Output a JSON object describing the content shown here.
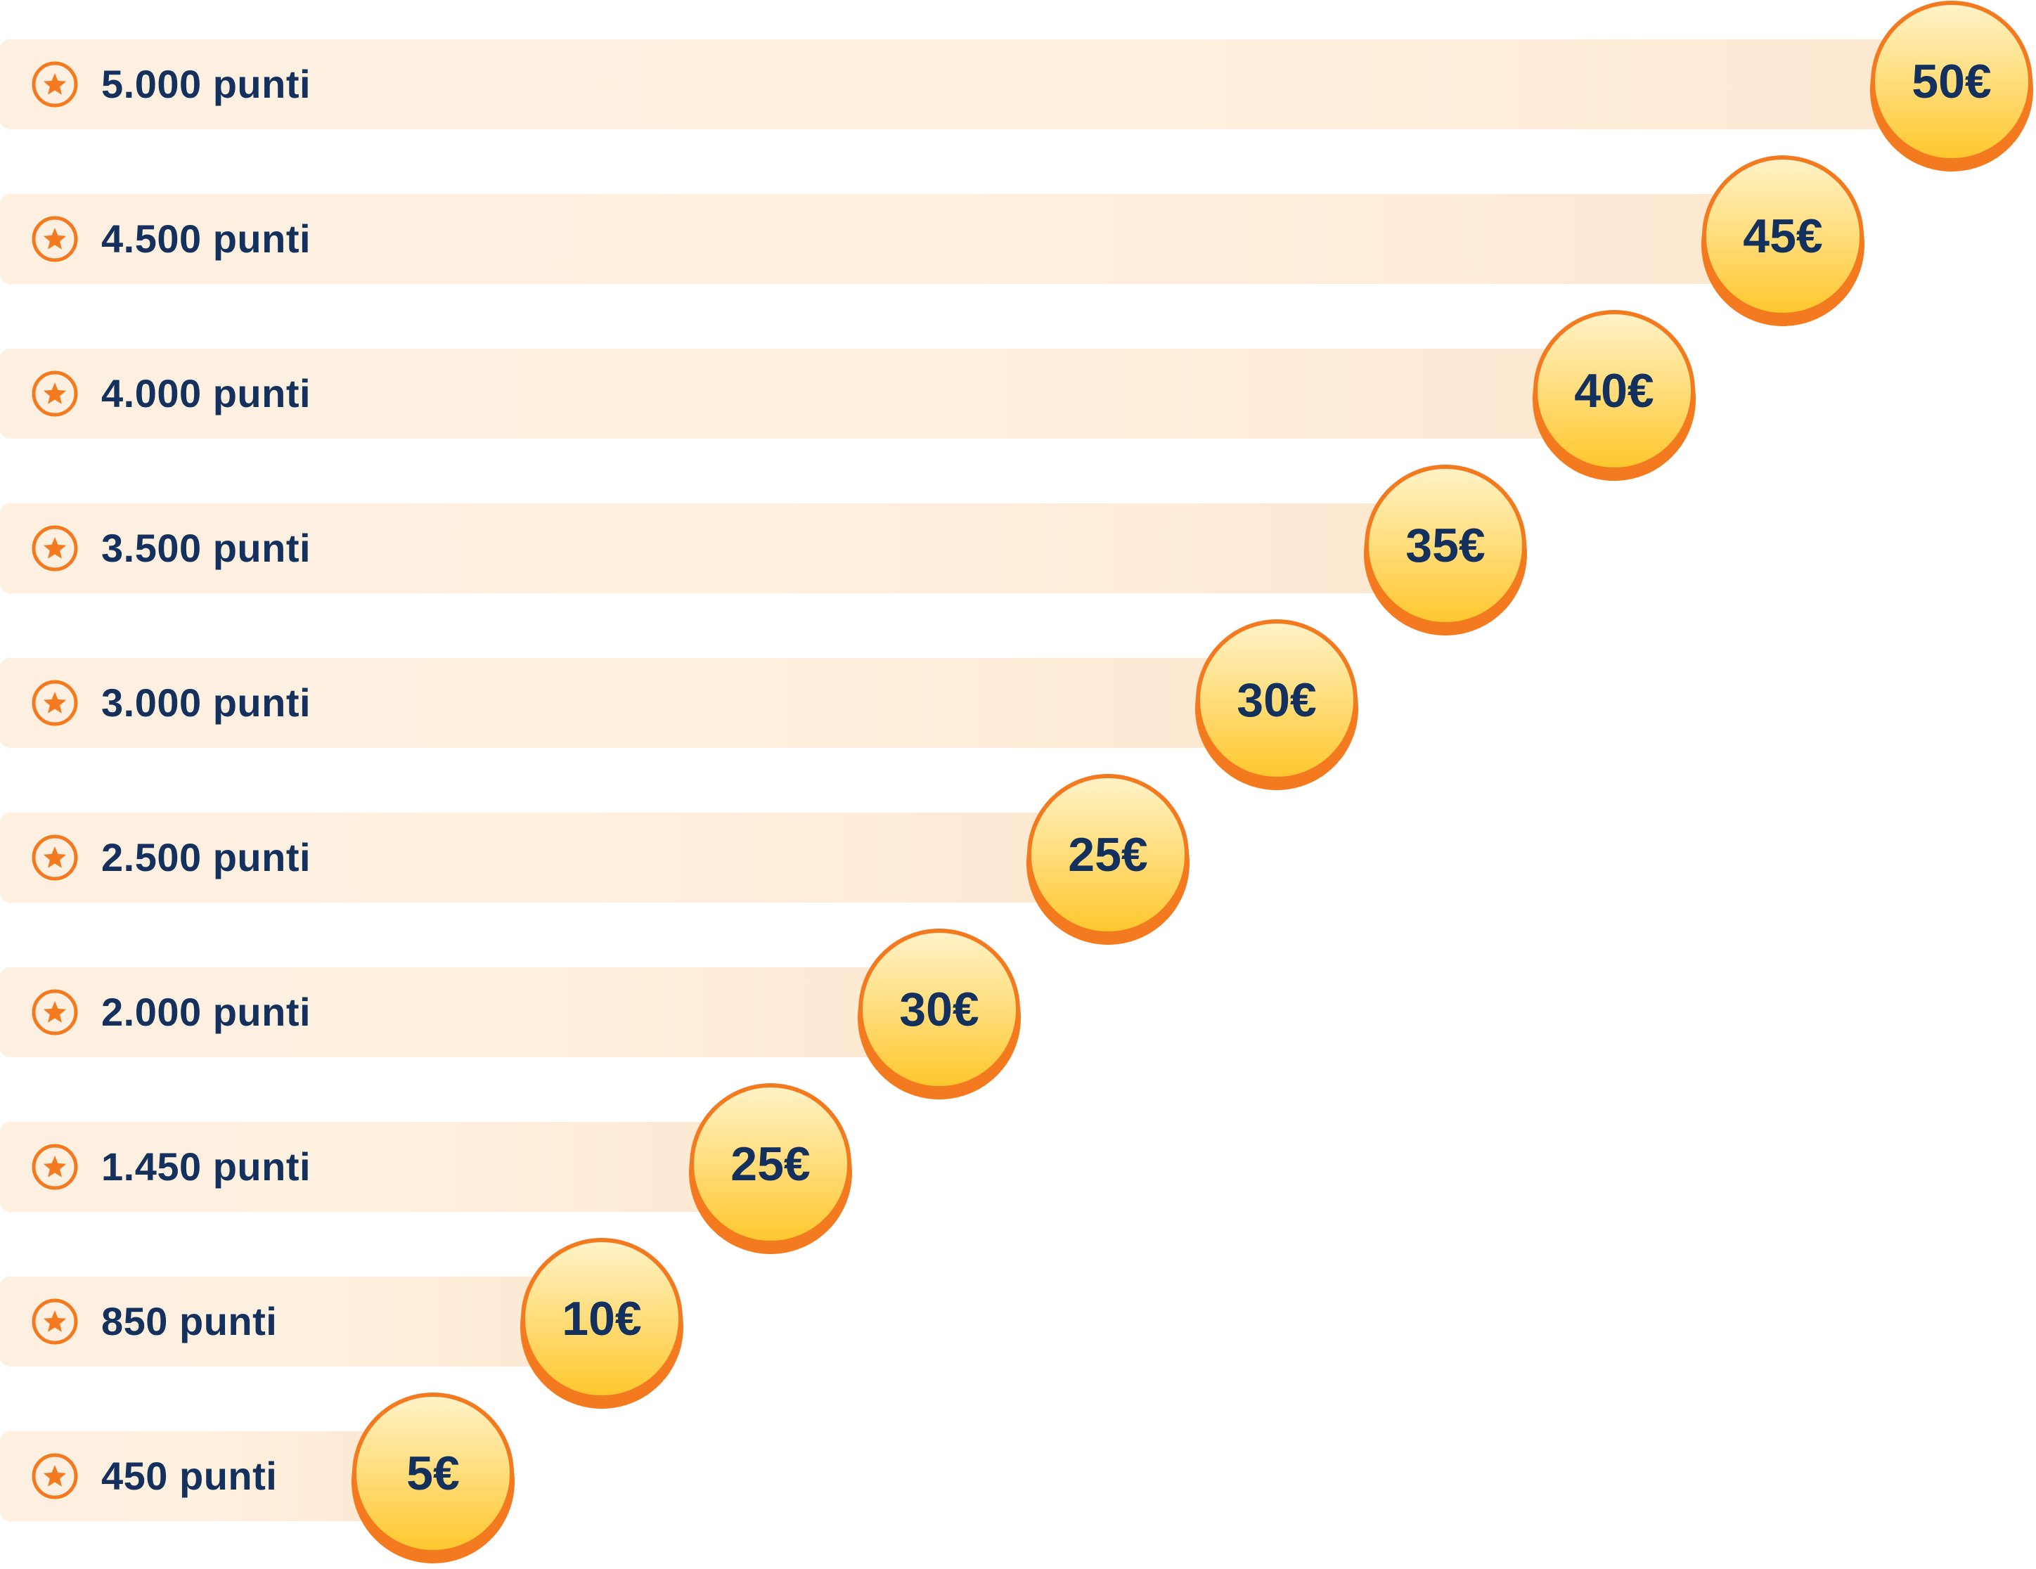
{
  "colors": {
    "bar_bg": "#fdf0e1",
    "text": "#14305c",
    "accent_orange": "#f47a1f",
    "coin_top": "#fff3c9",
    "coin_bottom": "#ffc72c"
  },
  "icons": {
    "tier_icon": "star-in-circle-icon"
  },
  "tiers": [
    {
      "points": "5.000 punti",
      "reward": "50€"
    },
    {
      "points": "4.500 punti",
      "reward": "45€"
    },
    {
      "points": "4.000 punti",
      "reward": "40€"
    },
    {
      "points": "3.500 punti",
      "reward": "35€"
    },
    {
      "points": "3.000 punti",
      "reward": "30€"
    },
    {
      "points": "2.500 punti",
      "reward": "25€"
    },
    {
      "points": "2.000 punti",
      "reward": "30€"
    },
    {
      "points": "1.450 punti",
      "reward": "25€"
    },
    {
      "points": "850 punti",
      "reward": "10€"
    },
    {
      "points": "450 punti",
      "reward": "5€"
    }
  ]
}
